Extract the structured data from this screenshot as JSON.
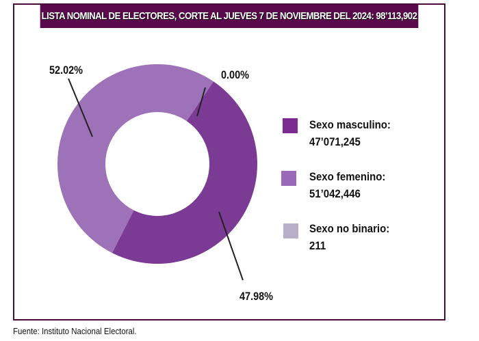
{
  "header": {
    "title": "LISTA NOMINAL DE ELECTORES, CORTE AL JUEVES 7 DE NOVIEMBRE DEL 2024: 98’113,902"
  },
  "chart_data": {
    "type": "pie",
    "title": "LISTA NOMINAL DE ELECTORES, CORTE AL JUEVES 7 DE NOVIEMBRE DEL 2024: 98’113,902",
    "donut": true,
    "slices": [
      {
        "name": "Sexo masculino",
        "value": 47071245,
        "value_label": "47’071,245",
        "percent": 47.98,
        "percent_label": "47.98%",
        "color": "#7b3a94"
      },
      {
        "name": "Sexo femenino",
        "value": 51042446,
        "value_label": "51’042,446",
        "percent": 52.02,
        "percent_label": "52.02%",
        "color": "#9e72b8"
      },
      {
        "name": "Sexo no binario",
        "value": 211,
        "value_label": "211",
        "percent": 0.0,
        "percent_label": "0.00%",
        "color": "#b9a8c8"
      }
    ],
    "legend_position": "right"
  },
  "legend": [
    {
      "label": "Sexo masculino:",
      "value": "47’071,245",
      "color": "#7b2a92"
    },
    {
      "label": "Sexo femenino:",
      "value": "51’042,446",
      "color": "#9b67b8"
    },
    {
      "label": "Sexo no binario:",
      "value": "211",
      "color": "#b9aec9"
    }
  ],
  "source": "Fuente: Instituto Nacional Electoral."
}
